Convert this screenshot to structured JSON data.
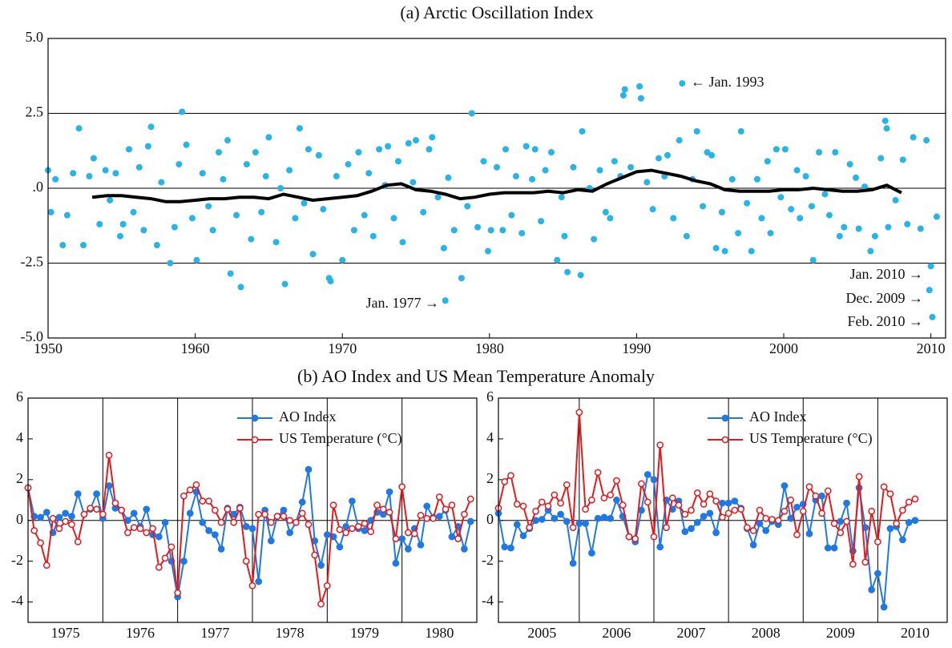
{
  "chart_data": [
    {
      "type": "scatter",
      "title": "(a)  Arctic Oscillation Index",
      "xlim": [
        1950,
        2011
      ],
      "ylim": [
        -5,
        5
      ],
      "xticks": [
        1950,
        1960,
        1970,
        1980,
        1990,
        2000,
        2010
      ],
      "yticks": [
        {
          "value": 5,
          "label": "5.0"
        },
        {
          "value": 2.5,
          "label": "2.5"
        },
        {
          "value": 0,
          "label": ".0"
        },
        {
          "value": -2.5,
          "label": "-2.5"
        },
        {
          "value": -5,
          "label": "-5.0"
        }
      ],
      "grid": true,
      "series": [
        {
          "style": "dots",
          "color": "#27b4ea",
          "x": [
            1950.0,
            1950.2,
            1950.5,
            1951.0,
            1951.3,
            1951.7,
            1952.1,
            1952.4,
            1952.8,
            1953.1,
            1953.5,
            1953.9,
            1954.2,
            1954.6,
            1954.9,
            1955.1,
            1955.5,
            1955.8,
            1956.2,
            1956.5,
            1956.8,
            1957.0,
            1957.4,
            1957.7,
            1958.3,
            1958.6,
            1958.9,
            1959.1,
            1959.4,
            1959.8,
            1960.1,
            1960.5,
            1960.9,
            1961.2,
            1961.6,
            1961.9,
            1962.2,
            1962.4,
            1962.8,
            1963.1,
            1963.5,
            1963.8,
            1964.1,
            1964.5,
            1964.8,
            1965.0,
            1965.5,
            1965.8,
            1966.1,
            1966.4,
            1966.8,
            1967.1,
            1967.4,
            1967.7,
            1968.0,
            1968.4,
            1968.7,
            1969.1,
            1969.2,
            1969.6,
            1970.0,
            1970.4,
            1970.8,
            1971.1,
            1971.5,
            1971.8,
            1972.1,
            1972.5,
            1972.9,
            1973.1,
            1973.5,
            1973.8,
            1974.1,
            1974.5,
            1974.8,
            1975.0,
            1975.5,
            1975.9,
            1976.1,
            1976.5,
            1976.9,
            1977.0,
            1977.2,
            1977.6,
            1978.1,
            1978.5,
            1978.8,
            1979.2,
            1979.6,
            1979.9,
            1980.1,
            1980.5,
            1980.9,
            1981.1,
            1981.5,
            1981.8,
            1982.2,
            1982.5,
            1982.9,
            1983.1,
            1983.5,
            1983.8,
            1984.2,
            1984.6,
            1984.9,
            1985.1,
            1985.3,
            1985.7,
            1986.2,
            1986.3,
            1986.8,
            1987.1,
            1987.5,
            1987.9,
            1988.2,
            1988.5,
            1988.9,
            1989.1,
            1989.2,
            1989.6,
            1990.2,
            1990.3,
            1990.7,
            1991.1,
            1991.5,
            1991.9,
            1992.1,
            1992.5,
            1992.9,
            1993.1,
            1993.4,
            1993.8,
            1994.1,
            1994.5,
            1994.8,
            1995.1,
            1995.4,
            1995.8,
            1996.0,
            1996.5,
            1996.9,
            1997.1,
            1997.5,
            1997.8,
            1998.2,
            1998.5,
            1998.9,
            1999.1,
            1999.5,
            1999.8,
            2000.1,
            2000.5,
            2000.9,
            2001.1,
            2001.5,
            2001.9,
            2002.0,
            2002.4,
            2002.8,
            2003.1,
            2003.5,
            2003.8,
            2004.1,
            2004.5,
            2004.9,
            2005.1,
            2005.5,
            2005.9,
            2006.2,
            2006.6,
            2006.9,
            2007.0,
            2007.1,
            2007.6,
            2008.1,
            2008.4,
            2008.8,
            2009.3,
            2009.7,
            2009.9,
            2010.0,
            2010.1,
            2010.4
          ],
          "values": [
            0.6,
            -0.8,
            0.3,
            -1.9,
            -0.9,
            0.5,
            2.0,
            -1.9,
            0.4,
            1.0,
            -1.2,
            0.6,
            -0.4,
            0.5,
            -1.6,
            -1.2,
            1.3,
            -0.8,
            0.7,
            -1.4,
            1.4,
            2.05,
            -1.9,
            0.2,
            -2.5,
            -1.3,
            0.8,
            2.55,
            1.45,
            -1.0,
            -2.4,
            0.5,
            -0.6,
            -1.4,
            1.2,
            0.3,
            1.6,
            -2.85,
            -0.9,
            -3.3,
            0.8,
            -1.7,
            1.2,
            -0.8,
            0.4,
            1.7,
            -1.8,
            0.0,
            -3.2,
            0.6,
            -1.0,
            2.0,
            -0.5,
            1.3,
            -2.2,
            1.1,
            -0.7,
            -3.0,
            -3.1,
            0.4,
            -2.4,
            0.8,
            -1.4,
            1.2,
            -0.9,
            0.5,
            -1.6,
            1.3,
            0.1,
            1.4,
            -1.0,
            0.9,
            -1.8,
            1.5,
            0.2,
            1.6,
            -0.8,
            1.3,
            1.7,
            -0.3,
            -2.0,
            -3.75,
            0.35,
            -1.4,
            -3.0,
            -0.6,
            2.5,
            -1.3,
            0.9,
            -2.1,
            -1.4,
            0.7,
            -1.4,
            1.3,
            -0.9,
            0.4,
            -1.5,
            1.4,
            0.3,
            1.3,
            -1.1,
            0.6,
            1.2,
            -2.4,
            -0.3,
            -1.6,
            -2.8,
            0.7,
            -2.9,
            1.9,
            0.0,
            -1.7,
            0.6,
            -0.8,
            -1.0,
            0.9,
            0.4,
            3.1,
            3.3,
            0.7,
            3.4,
            3.0,
            0.2,
            -0.7,
            1.0,
            0.4,
            1.1,
            -1.0,
            1.6,
            3.5,
            -1.6,
            0.3,
            1.9,
            -0.6,
            1.2,
            1.1,
            -2.0,
            -0.8,
            -2.1,
            0.3,
            -1.5,
            1.9,
            -0.5,
            -2.1,
            0.3,
            -1.0,
            0.9,
            -1.5,
            1.3,
            -0.3,
            1.3,
            -0.7,
            0.6,
            -1.0,
            0.4,
            -0.6,
            -2.4,
            1.2,
            -0.2,
            -0.9,
            1.2,
            -1.6,
            -1.3,
            0.8,
            0.35,
            -1.35,
            0.05,
            -2.1,
            -1.6,
            1.0,
            2.25,
            2.0,
            -1.3,
            -0.4,
            0.95,
            -1.2,
            1.7,
            -1.35,
            1.6,
            -3.4,
            -2.6,
            -4.3,
            -0.95
          ]
        },
        {
          "style": "line",
          "color": "#000000",
          "x": [
            1953,
            1954,
            1955,
            1956,
            1957,
            1958,
            1959,
            1960,
            1961,
            1962,
            1963,
            1964,
            1965,
            1966,
            1967,
            1968,
            1969,
            1970,
            1971,
            1972,
            1973,
            1974,
            1975,
            1976,
            1977,
            1978,
            1979,
            1980,
            1981,
            1982,
            1983,
            1984,
            1985,
            1986,
            1987,
            1988,
            1989,
            1990,
            1991,
            1992,
            1993,
            1994,
            1995,
            1996,
            1997,
            1998,
            1999,
            2000,
            2001,
            2002,
            2003,
            2004,
            2005,
            2006,
            2007,
            2008
          ],
          "values": [
            -0.3,
            -0.25,
            -0.25,
            -0.3,
            -0.35,
            -0.45,
            -0.45,
            -0.4,
            -0.35,
            -0.35,
            -0.3,
            -0.3,
            -0.35,
            -0.2,
            -0.3,
            -0.4,
            -0.35,
            -0.3,
            -0.25,
            -0.1,
            0.1,
            0.15,
            -0.05,
            -0.1,
            -0.2,
            -0.35,
            -0.3,
            -0.2,
            -0.15,
            -0.15,
            -0.15,
            -0.1,
            -0.15,
            -0.05,
            -0.1,
            0.15,
            0.35,
            0.55,
            0.6,
            0.5,
            0.4,
            0.25,
            0.15,
            -0.05,
            -0.1,
            -0.1,
            -0.1,
            -0.05,
            -0.05,
            0.0,
            -0.05,
            -0.1,
            -0.1,
            -0.05,
            0.1,
            -0.15
          ]
        }
      ],
      "annotations": [
        "← Jan. 1993",
        "Jan. 1977 →",
        "Jan. 2010 →",
        "Dec. 2009 →",
        "Feb. 2010 →"
      ]
    },
    {
      "type": "line",
      "title": "(b)  AO Index and US Mean Temperature Anomaly",
      "xlim": [
        1975,
        1981
      ],
      "ylim": [
        -5,
        6
      ],
      "yticks": [
        -4,
        -2,
        0,
        2,
        4,
        6
      ],
      "xticks": [
        {
          "value": 1975.5,
          "label": "1975"
        },
        {
          "value": 1976.5,
          "label": "1976"
        },
        {
          "value": 1977.5,
          "label": "1977"
        },
        {
          "value": 1978.5,
          "label": "1978"
        },
        {
          "value": 1979.5,
          "label": "1979"
        },
        {
          "value": 1980.5,
          "label": "1980"
        }
      ],
      "year_lines": [
        1976,
        1977,
        1978,
        1979,
        1980
      ],
      "hlines": [
        0
      ],
      "legend": "upper right",
      "x": [
        1975,
        1975.083,
        1975.167,
        1975.25,
        1975.333,
        1975.417,
        1975.5,
        1975.583,
        1975.667,
        1975.75,
        1975.833,
        1975.917,
        1976,
        1976.083,
        1976.167,
        1976.25,
        1976.333,
        1976.417,
        1976.5,
        1976.583,
        1976.667,
        1976.75,
        1976.833,
        1976.917,
        1977,
        1977.083,
        1977.167,
        1977.25,
        1977.333,
        1977.417,
        1977.5,
        1977.583,
        1977.667,
        1977.75,
        1977.833,
        1977.917,
        1978,
        1978.083,
        1978.167,
        1978.25,
        1978.333,
        1978.417,
        1978.5,
        1978.583,
        1978.667,
        1978.75,
        1978.833,
        1978.917,
        1979,
        1979.083,
        1979.167,
        1979.25,
        1979.333,
        1979.417,
        1979.5,
        1979.583,
        1979.667,
        1979.75,
        1979.833,
        1979.917,
        1980,
        1980.083,
        1980.167,
        1980.25,
        1980.333,
        1980.417,
        1980.5,
        1980.583,
        1980.667,
        1980.75,
        1980.833,
        1980.917
      ],
      "series": [
        {
          "name": "AO Index",
          "color": "#1e78e6",
          "marker": "filled",
          "values": [
            1.6,
            0.2,
            0.15,
            0.4,
            -0.6,
            0.15,
            0.35,
            0.2,
            1.3,
            0.3,
            0.55,
            1.3,
            0.1,
            1.7,
            0.6,
            0.5,
            0.0,
            0.35,
            -0.3,
            0.55,
            -0.7,
            -0.8,
            -0.1,
            -2.0,
            -3.75,
            -2.0,
            0.35,
            1.4,
            -0.1,
            -0.5,
            -0.7,
            -1.4,
            0.6,
            0.3,
            0.65,
            -0.3,
            -0.4,
            -3.0,
            0.5,
            -1.0,
            0.2,
            0.5,
            -0.6,
            -0.1,
            0.9,
            2.5,
            -1.0,
            -2.2,
            -0.7,
            -0.8,
            -1.3,
            -0.3,
            0.95,
            -0.4,
            -0.5,
            0.0,
            0.4,
            0.3,
            1.4,
            -2.1,
            -0.9,
            -1.4,
            -0.4,
            -1.2,
            0.7,
            0.15,
            0.2,
            0.5,
            -0.8,
            -0.3,
            -1.4,
            -0.05
          ]
        },
        {
          "name": "US Temperature (°C)",
          "color": "#e41a1c",
          "marker": "open",
          "values": [
            1.6,
            -0.5,
            -1.1,
            -2.2,
            0.1,
            -0.4,
            -0.05,
            -0.2,
            -1.05,
            0.3,
            0.6,
            0.55,
            0.3,
            3.2,
            0.85,
            0.5,
            -0.6,
            -0.35,
            -0.4,
            -0.6,
            -0.4,
            -2.3,
            -1.85,
            -1.3,
            -3.55,
            1.2,
            1.5,
            1.75,
            0.95,
            0.95,
            0.5,
            -0.1,
            0.55,
            -0.1,
            0.6,
            -2.0,
            -3.2,
            0.3,
            0.3,
            -0.1,
            0.2,
            0.2,
            0.0,
            -0.1,
            0.35,
            -0.2,
            -1.7,
            -4.1,
            -3.2,
            0.75,
            -0.45,
            -0.6,
            -0.4,
            -0.3,
            -0.15,
            -0.55,
            0.75,
            0.55,
            0.4,
            -0.9,
            1.65,
            -0.6,
            -0.65,
            0.25,
            0.1,
            0.1,
            1.15,
            0.55,
            0.75,
            -0.9,
            0.3,
            1.05
          ]
        }
      ]
    },
    {
      "type": "line",
      "xlim": [
        2004.917,
        2010.93
      ],
      "ylim": [
        -5,
        6
      ],
      "yticks": [
        -4,
        -2,
        0,
        2,
        4,
        6
      ],
      "xticks": [
        {
          "value": 2005.5,
          "label": "2005"
        },
        {
          "value": 2006.5,
          "label": "2006"
        },
        {
          "value": 2007.5,
          "label": "2007"
        },
        {
          "value": 2008.5,
          "label": "2008"
        },
        {
          "value": 2009.5,
          "label": "2009"
        },
        {
          "value": 2010.5,
          "label": "2010"
        }
      ],
      "year_lines": [
        2006,
        2007,
        2008,
        2009,
        2010
      ],
      "hlines": [
        0
      ],
      "legend": "upper right",
      "x": [
        2004.917,
        2005,
        2005.083,
        2005.167,
        2005.25,
        2005.333,
        2005.417,
        2005.5,
        2005.583,
        2005.667,
        2005.75,
        2005.833,
        2005.917,
        2006,
        2006.083,
        2006.167,
        2006.25,
        2006.333,
        2006.417,
        2006.5,
        2006.583,
        2006.667,
        2006.75,
        2006.833,
        2006.917,
        2007,
        2007.083,
        2007.167,
        2007.25,
        2007.333,
        2007.417,
        2007.5,
        2007.583,
        2007.667,
        2007.75,
        2007.833,
        2007.917,
        2008,
        2008.083,
        2008.167,
        2008.25,
        2008.333,
        2008.417,
        2008.5,
        2008.583,
        2008.667,
        2008.75,
        2008.833,
        2008.917,
        2009,
        2009.083,
        2009.167,
        2009.25,
        2009.333,
        2009.417,
        2009.5,
        2009.583,
        2009.667,
        2009.75,
        2009.833,
        2009.917,
        2010,
        2010.083,
        2010.167,
        2010.25,
        2010.333,
        2010.417,
        2010.5
      ],
      "series": [
        {
          "name": "AO Index",
          "color": "#1e78e6",
          "marker": "filled",
          "values": [
            0.35,
            -1.3,
            -1.35,
            -0.2,
            -0.75,
            -0.4,
            0.0,
            0.05,
            0.5,
            0.1,
            0.3,
            -0.05,
            -2.1,
            -0.15,
            -0.15,
            -1.6,
            0.1,
            0.15,
            0.1,
            1.0,
            0.2,
            -0.8,
            -1.05,
            0.5,
            2.25,
            2.0,
            -1.3,
            1.0,
            0.55,
            0.95,
            -0.55,
            -0.4,
            -0.1,
            0.2,
            0.35,
            -0.6,
            0.85,
            0.85,
            0.95,
            0.6,
            -0.4,
            -1.2,
            -0.15,
            -0.5,
            -0.05,
            -0.2,
            1.7,
            0.1,
            0.65,
            0.8,
            -0.65,
            1.0,
            1.2,
            -1.35,
            -1.35,
            -0.05,
            0.85,
            -1.5,
            1.6,
            -0.35,
            -3.4,
            -2.6,
            -4.25,
            -0.4,
            -0.3,
            -0.95,
            -0.1,
            0.0
          ]
        },
        {
          "name": "US Temperature (°C)",
          "color": "#e41a1c",
          "marker": "open",
          "values": [
            0.6,
            1.9,
            2.2,
            0.8,
            0.7,
            -0.35,
            0.45,
            0.9,
            0.7,
            1.25,
            0.85,
            1.75,
            -0.35,
            5.3,
            0.55,
            1.0,
            2.35,
            1.1,
            1.25,
            1.95,
            0.75,
            -0.8,
            -0.9,
            1.8,
            0.9,
            -0.8,
            3.7,
            -0.35,
            1.1,
            0.75,
            0.3,
            0.5,
            1.35,
            0.8,
            1.3,
            0.95,
            0.15,
            0.35,
            0.5,
            0.55,
            -0.35,
            -0.5,
            0.5,
            0.1,
            0.05,
            0.0,
            0.45,
            1.0,
            -0.7,
            0.45,
            1.65,
            1.2,
            0.35,
            1.45,
            -0.15,
            -0.6,
            -0.05,
            -2.15,
            2.15,
            -2.05,
            0.45,
            -1.05,
            1.65,
            1.3,
            -0.15,
            0.5,
            0.9,
            1.05
          ]
        }
      ]
    }
  ]
}
